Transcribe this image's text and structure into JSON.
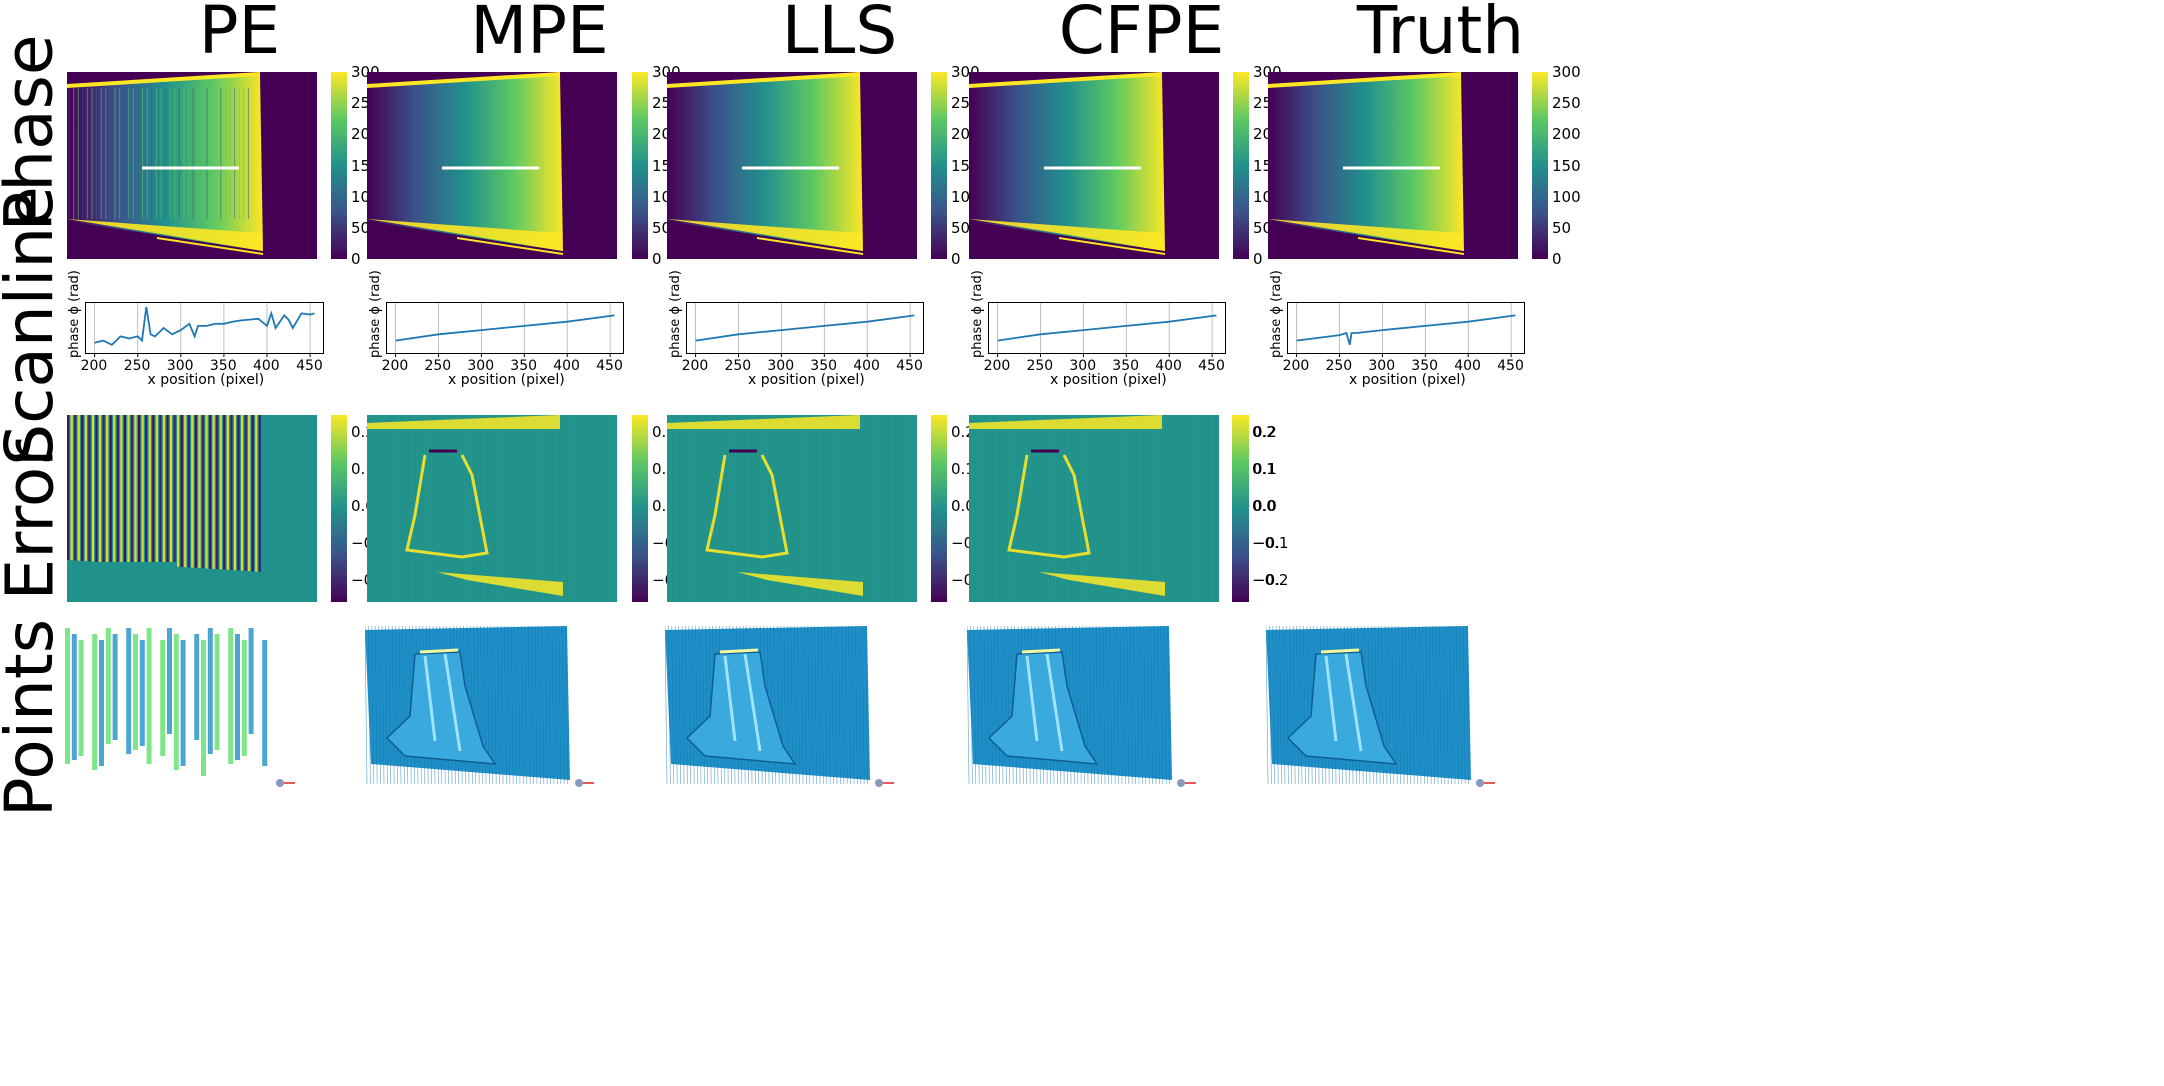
{
  "columns": [
    "PE",
    "MPE",
    "LLS",
    "CFPE",
    "Truth"
  ],
  "rows": [
    "Phase",
    "Scanline",
    "Error",
    "Points"
  ],
  "colors": {
    "viridis": [
      "#440154",
      "#3b528b",
      "#21918c",
      "#5ec962",
      "#fde725"
    ],
    "error_mid": "#21918c",
    "point_blue": "#1f8fc8",
    "point_green": "#5ee06a",
    "scan_line": "#1f77b4"
  },
  "phase_colorbar": {
    "ticks": [
      "300",
      "250",
      "200",
      "150",
      "100",
      "50",
      "0"
    ],
    "range": [
      0,
      300
    ]
  },
  "error_colorbar": {
    "ticks": [
      "0.2",
      "0.1",
      "0.0",
      "−0.1",
      "−0.2"
    ],
    "range": [
      -0.25,
      0.25
    ]
  },
  "error_colorbar_truncated_ticks": [
    "0.2",
    "0.1",
    "0.0",
    "−0.1",
    "−0.2"
  ],
  "error_colorbar_mid_ticks": [
    "0.2",
    "0.1",
    "0.0",
    "−0.",
    "−0."
  ],
  "chart_data": [
    {
      "type": "line",
      "panel": "PE",
      "xlabel": "x position (pixel)",
      "ylabel": "phase ϕ (rad)",
      "xticks": [
        "200",
        "250",
        "300",
        "350",
        "400",
        "450"
      ],
      "x": [
        200,
        210,
        220,
        230,
        240,
        250,
        255,
        260,
        265,
        270,
        280,
        290,
        300,
        310,
        316,
        320,
        330,
        340,
        350,
        360,
        370,
        380,
        390,
        400,
        405,
        410,
        420,
        425,
        430,
        440,
        450,
        455
      ],
      "y": [
        0.15,
        0.2,
        0.1,
        0.3,
        0.25,
        0.3,
        0.2,
        1.0,
        0.35,
        0.3,
        0.5,
        0.35,
        0.45,
        0.6,
        0.3,
        0.55,
        0.55,
        0.6,
        0.6,
        0.65,
        0.68,
        0.7,
        0.72,
        0.55,
        0.85,
        0.5,
        0.8,
        0.7,
        0.5,
        0.85,
        0.82,
        0.85
      ]
    },
    {
      "type": "line",
      "panel": "MPE",
      "xlabel": "x position (pixel)",
      "ylabel": "phase ϕ (rad)",
      "xticks": [
        "200",
        "250",
        "300",
        "350",
        "400",
        "450"
      ],
      "x": [
        200,
        250,
        300,
        350,
        400,
        455
      ],
      "y": [
        0.2,
        0.35,
        0.45,
        0.55,
        0.65,
        0.8
      ]
    },
    {
      "type": "line",
      "panel": "LLS",
      "xlabel": "x position (pixel)",
      "ylabel": "phase ϕ (rad)",
      "xticks": [
        "200",
        "250",
        "300",
        "350",
        "400",
        "450"
      ],
      "x": [
        200,
        250,
        300,
        350,
        400,
        455
      ],
      "y": [
        0.2,
        0.35,
        0.45,
        0.55,
        0.65,
        0.8
      ]
    },
    {
      "type": "line",
      "panel": "CFPE",
      "xlabel": "x position (pixel)",
      "ylabel": "phase ϕ (rad)",
      "xticks": [
        "200",
        "250",
        "300",
        "350",
        "400",
        "450"
      ],
      "x": [
        200,
        250,
        300,
        350,
        400,
        455
      ],
      "y": [
        0.2,
        0.35,
        0.45,
        0.55,
        0.65,
        0.8
      ]
    },
    {
      "type": "line",
      "panel": "Truth",
      "xlabel": "x position (pixel)",
      "ylabel": "phase ϕ (rad)",
      "xticks": [
        "200",
        "250",
        "300",
        "350",
        "400",
        "450"
      ],
      "x": [
        200,
        250,
        258,
        262,
        264,
        270,
        300,
        350,
        400,
        455
      ],
      "y": [
        0.2,
        0.33,
        0.38,
        0.1,
        0.38,
        0.38,
        0.45,
        0.55,
        0.65,
        0.8
      ]
    }
  ]
}
